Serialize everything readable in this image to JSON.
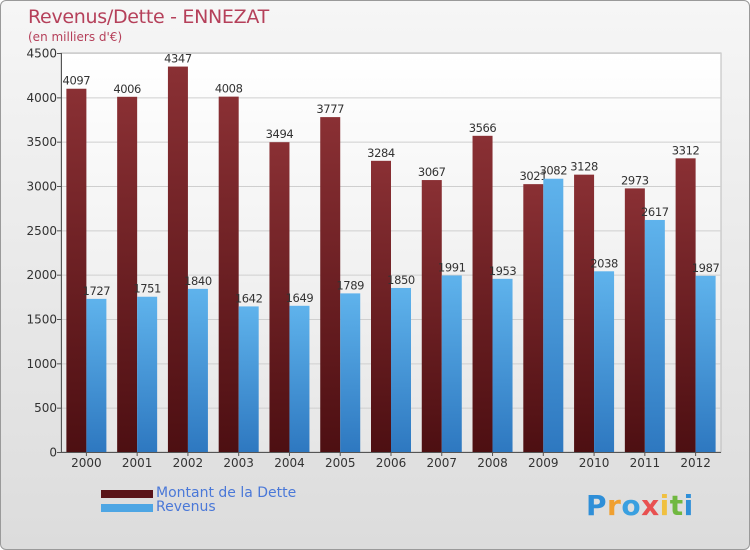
{
  "header": {
    "title": "Revenus/Dette - ENNEZAT",
    "subtitle": "(en milliers d'€)"
  },
  "chart_data": {
    "type": "bar",
    "categories": [
      "2000",
      "2001",
      "2002",
      "2003",
      "2004",
      "2005",
      "2006",
      "2007",
      "2008",
      "2009",
      "2010",
      "2011",
      "2012"
    ],
    "series": [
      {
        "name": "Montant de la Dette",
        "values": [
          4097,
          4006,
          4347,
          4008,
          3494,
          3777,
          3284,
          3067,
          3566,
          3021,
          3128,
          2973,
          3312
        ],
        "color": "#7a2a2e"
      },
      {
        "name": "Revenus",
        "values": [
          1727,
          1751,
          1840,
          1642,
          1649,
          1789,
          1850,
          1991,
          1953,
          3082,
          2038,
          2617,
          1987
        ],
        "color": "#4ea6e4"
      }
    ],
    "ylim": [
      0,
      4500
    ],
    "yticks": [
      0,
      500,
      1000,
      1500,
      2000,
      2500,
      3000,
      3500,
      4000,
      4500
    ],
    "grid": true,
    "legend": "bottom-left"
  },
  "legend": {
    "debt_label": "Montant de la Dette",
    "revenue_label": "Revenus"
  },
  "brand": {
    "letters": [
      "P",
      "r",
      "o",
      "x",
      "i",
      "t",
      "i"
    ]
  },
  "colors": {
    "title": "#b5405a",
    "debt": "#7a2a2e",
    "revenue": "#4ea6e4"
  }
}
